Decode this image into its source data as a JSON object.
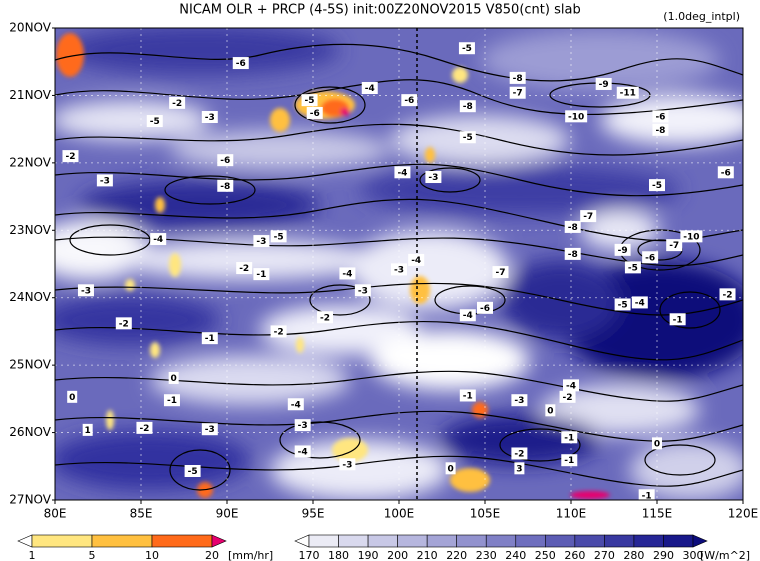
{
  "chart_data": {
    "type": "hovmoller",
    "title": "NICAM  OLR + PRCP (4-5S) init:00Z20NOV2015 V850(cnt) slab",
    "subtitle": "(1.0deg_intpl)",
    "xlim": [
      80,
      120
    ],
    "xticks": [
      {
        "value": 80,
        "label": "80E"
      },
      {
        "value": 85,
        "label": "85E"
      },
      {
        "value": 90,
        "label": "90E"
      },
      {
        "value": 95,
        "label": "95E"
      },
      {
        "value": 100,
        "label": "100E"
      },
      {
        "value": 105,
        "label": "105E"
      },
      {
        "value": 110,
        "label": "110E"
      },
      {
        "value": 115,
        "label": "115E"
      },
      {
        "value": 120,
        "label": "120E"
      }
    ],
    "ylim": [
      0,
      7
    ],
    "yticks": [
      {
        "value": 0,
        "label": "20NOV"
      },
      {
        "value": 1,
        "label": "21NOV"
      },
      {
        "value": 2,
        "label": "22NOV"
      },
      {
        "value": 3,
        "label": "23NOV"
      },
      {
        "value": 4,
        "label": "24NOV"
      },
      {
        "value": 5,
        "label": "25NOV"
      },
      {
        "value": 6,
        "label": "26NOV"
      },
      {
        "value": 7,
        "label": "27NOV"
      }
    ],
    "grid": true,
    "precip_levels": [
      1,
      5,
      10,
      20
    ],
    "precip_colors": [
      "#ffffff",
      "#ffe680",
      "#ffc040",
      "#ff6a1a",
      "#e6006e"
    ],
    "precip_unit": "[mm/hr]",
    "olr_levels": [
      170,
      180,
      190,
      200,
      210,
      220,
      230,
      240,
      250,
      260,
      270,
      280,
      290,
      300
    ],
    "olr_colors": [
      "#ffffff",
      "#ebebf5",
      "#d9d9ee",
      "#c8c8e6",
      "#b6b6de",
      "#a4a4d6",
      "#9292ce",
      "#8080c6",
      "#6e6ebe",
      "#5c5cb4",
      "#4a4aaa",
      "#3838a0",
      "#262696",
      "#18188a",
      "#0c0c7c"
    ],
    "olr_unit": "[W/m^2]",
    "contour_labels": [
      {
        "lon": 103.95,
        "day": 0.3,
        "value": -5
      },
      {
        "lon": 90.8,
        "day": 0.52,
        "value": -6
      },
      {
        "lon": 106.9,
        "day": 0.74,
        "value": -8
      },
      {
        "lon": 106.9,
        "day": 0.96,
        "value": -7
      },
      {
        "lon": 111.9,
        "day": 0.83,
        "value": -9
      },
      {
        "lon": 113.3,
        "day": 0.96,
        "value": -11
      },
      {
        "lon": 94.8,
        "day": 1.07,
        "value": -5
      },
      {
        "lon": 95.1,
        "day": 1.26,
        "value": -6
      },
      {
        "lon": 98.3,
        "day": 0.89,
        "value": -4
      },
      {
        "lon": 100.6,
        "day": 1.07,
        "value": -6
      },
      {
        "lon": 104.0,
        "day": 1.16,
        "value": -8
      },
      {
        "lon": 89.0,
        "day": 1.32,
        "value": -3
      },
      {
        "lon": 87.1,
        "day": 1.11,
        "value": -2
      },
      {
        "lon": 85.8,
        "day": 1.38,
        "value": -5
      },
      {
        "lon": 115.2,
        "day": 1.31,
        "value": -6
      },
      {
        "lon": 115.2,
        "day": 1.51,
        "value": -8
      },
      {
        "lon": 110.3,
        "day": 1.31,
        "value": -10
      },
      {
        "lon": 104.0,
        "day": 1.62,
        "value": -5
      },
      {
        "lon": 80.9,
        "day": 1.9,
        "value": -2
      },
      {
        "lon": 82.9,
        "day": 2.26,
        "value": -3
      },
      {
        "lon": 89.9,
        "day": 1.96,
        "value": -6
      },
      {
        "lon": 89.9,
        "day": 2.34,
        "value": -8
      },
      {
        "lon": 100.2,
        "day": 2.14,
        "value": -4
      },
      {
        "lon": 102.0,
        "day": 2.21,
        "value": -3
      },
      {
        "lon": 115.0,
        "day": 2.33,
        "value": -5
      },
      {
        "lon": 119.0,
        "day": 2.14,
        "value": -6
      },
      {
        "lon": 111.0,
        "day": 2.79,
        "value": -7
      },
      {
        "lon": 110.1,
        "day": 2.95,
        "value": -8
      },
      {
        "lon": 117.0,
        "day": 3.09,
        "value": -10
      },
      {
        "lon": 116.0,
        "day": 3.22,
        "value": -7
      },
      {
        "lon": 113.0,
        "day": 3.29,
        "value": -9
      },
      {
        "lon": 110.1,
        "day": 3.35,
        "value": -8
      },
      {
        "lon": 114.6,
        "day": 3.4,
        "value": -6
      },
      {
        "lon": 113.6,
        "day": 3.55,
        "value": -5
      },
      {
        "lon": 86.0,
        "day": 3.13,
        "value": -4
      },
      {
        "lon": 92.0,
        "day": 3.16,
        "value": -3
      },
      {
        "lon": 93.0,
        "day": 3.09,
        "value": -5
      },
      {
        "lon": 91.0,
        "day": 3.56,
        "value": -2
      },
      {
        "lon": 92.0,
        "day": 3.65,
        "value": -1
      },
      {
        "lon": 97.0,
        "day": 3.64,
        "value": -4
      },
      {
        "lon": 100.0,
        "day": 3.58,
        "value": -3
      },
      {
        "lon": 101.0,
        "day": 3.44,
        "value": -4
      },
      {
        "lon": 105.9,
        "day": 3.62,
        "value": -7
      },
      {
        "lon": 81.8,
        "day": 3.89,
        "value": -3
      },
      {
        "lon": 97.9,
        "day": 3.89,
        "value": -3
      },
      {
        "lon": 113.0,
        "day": 4.1,
        "value": -5
      },
      {
        "lon": 114.0,
        "day": 4.07,
        "value": -4
      },
      {
        "lon": 119.1,
        "day": 3.95,
        "value": -2
      },
      {
        "lon": 105.0,
        "day": 4.15,
        "value": -6
      },
      {
        "lon": 104.0,
        "day": 4.26,
        "value": -4
      },
      {
        "lon": 116.2,
        "day": 4.32,
        "value": -1
      },
      {
        "lon": 95.7,
        "day": 4.29,
        "value": -2
      },
      {
        "lon": 84.0,
        "day": 4.38,
        "value": -2
      },
      {
        "lon": 93.0,
        "day": 4.5,
        "value": -2
      },
      {
        "lon": 89.0,
        "day": 4.6,
        "value": -1
      },
      {
        "lon": 86.9,
        "day": 5.19,
        "value": 0
      },
      {
        "lon": 81.0,
        "day": 5.47,
        "value": 0
      },
      {
        "lon": 86.8,
        "day": 5.52,
        "value": -1
      },
      {
        "lon": 94.0,
        "day": 5.58,
        "value": -4
      },
      {
        "lon": 104.0,
        "day": 5.45,
        "value": -1
      },
      {
        "lon": 110.0,
        "day": 5.3,
        "value": -4
      },
      {
        "lon": 107.0,
        "day": 5.52,
        "value": -3
      },
      {
        "lon": 109.8,
        "day": 5.47,
        "value": -2
      },
      {
        "lon": 108.8,
        "day": 5.67,
        "value": 0
      },
      {
        "lon": 85.2,
        "day": 5.93,
        "value": -2
      },
      {
        "lon": 89.0,
        "day": 5.95,
        "value": -3
      },
      {
        "lon": 94.4,
        "day": 5.89,
        "value": -3
      },
      {
        "lon": 94.4,
        "day": 6.28,
        "value": -4
      },
      {
        "lon": 97.0,
        "day": 6.47,
        "value": -3
      },
      {
        "lon": 109.9,
        "day": 6.07,
        "value": -1
      },
      {
        "lon": 107.0,
        "day": 6.31,
        "value": -2
      },
      {
        "lon": 109.9,
        "day": 6.41,
        "value": -1
      },
      {
        "lon": 115.0,
        "day": 6.16,
        "value": 0
      },
      {
        "lon": 88.0,
        "day": 6.57,
        "value": -5
      },
      {
        "lon": 103.0,
        "day": 6.53,
        "value": 0
      },
      {
        "lon": 107.0,
        "day": 6.53,
        "value": 3
      },
      {
        "lon": 114.4,
        "day": 6.93,
        "value": -1
      },
      {
        "lon": 81.9,
        "day": 5.96,
        "value": 1
      }
    ]
  }
}
